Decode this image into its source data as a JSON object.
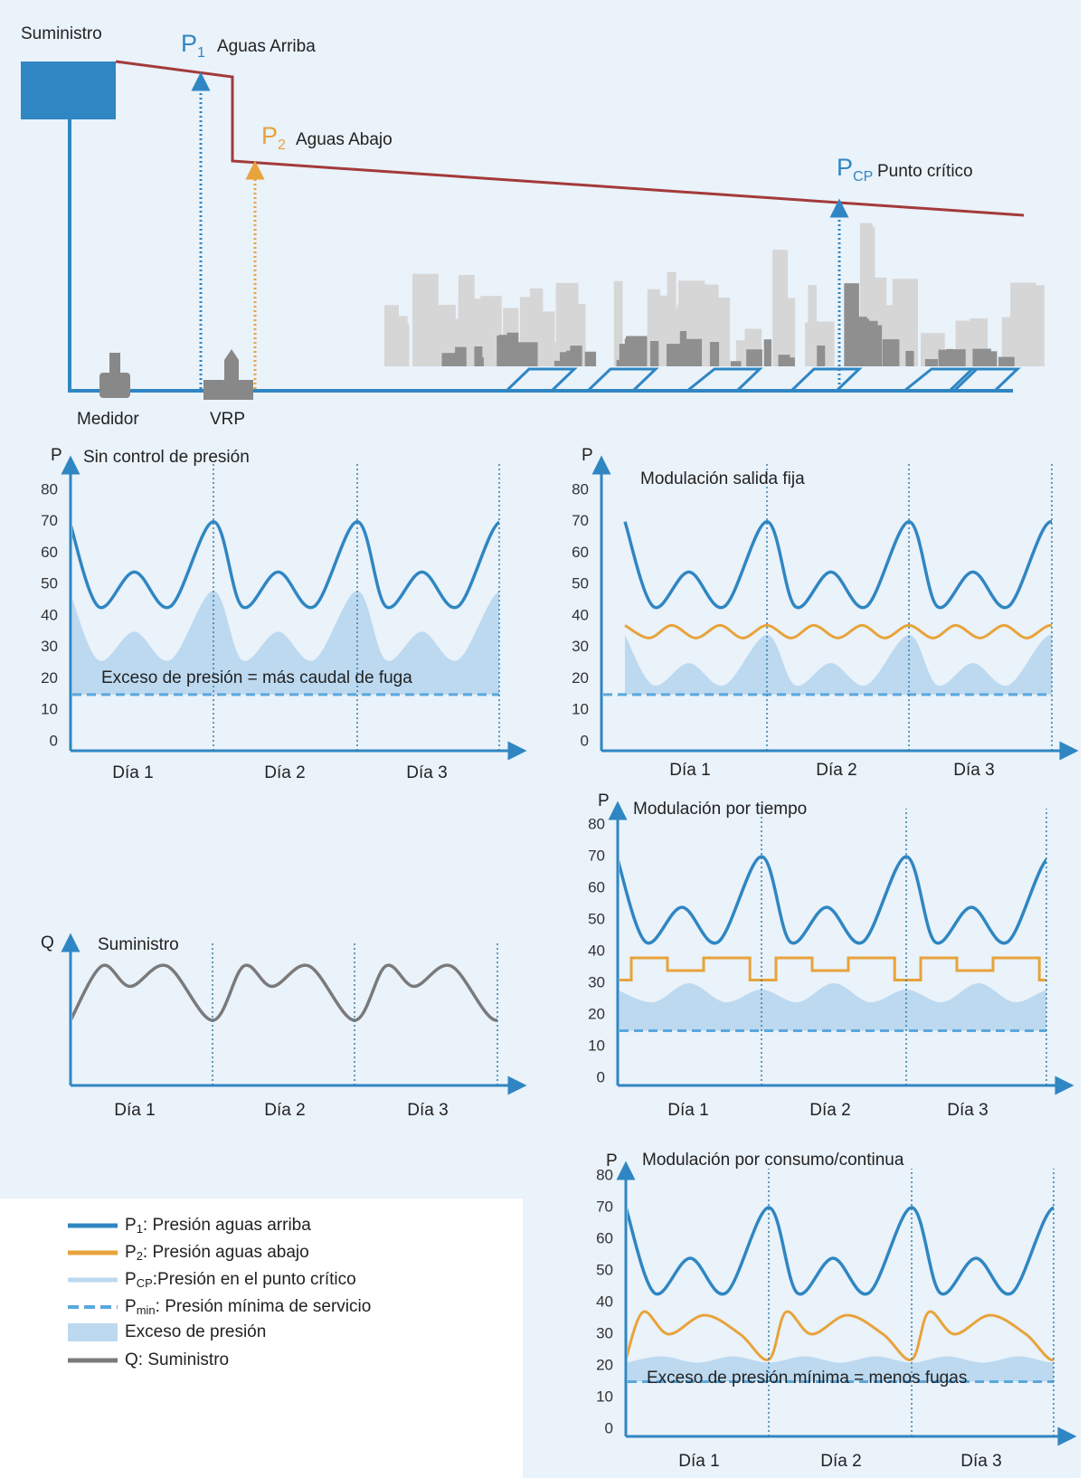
{
  "diagram": {
    "supply": "Suministro",
    "p1": {
      "symbol": "P",
      "sub": "1",
      "label": "Aguas Arriba"
    },
    "p2": {
      "symbol": "P",
      "sub": "2",
      "label": "Aguas Abajo"
    },
    "pcp": {
      "symbol": "P",
      "sub": "CP",
      "label": "Punto crítico"
    },
    "meter": "Medidor",
    "prv": "VRP"
  },
  "charts": [
    {
      "title": "Sin control de presión",
      "axis": "P",
      "yticks": [
        80,
        70,
        60,
        50,
        40,
        30,
        20,
        10,
        0
      ],
      "days": [
        "Día 1",
        "Día 2",
        "Día 3"
      ],
      "annotation": "Exceso de presión = más caudal de fuga"
    },
    {
      "title": "Modulación salida fija",
      "axis": "P",
      "yticks": [
        80,
        70,
        60,
        50,
        40,
        30,
        20,
        10,
        0
      ],
      "days": [
        "Día 1",
        "Día 2",
        "Día 3"
      ]
    },
    {
      "title": "Modulación por tiempo",
      "axis": "P",
      "yticks": [
        80,
        70,
        60,
        50,
        40,
        30,
        20,
        10,
        0
      ],
      "days": [
        "Día 1",
        "Día 2",
        "Día 3"
      ]
    },
    {
      "title": "Modulación por consumo/continua",
      "axis": "P",
      "yticks": [
        80,
        70,
        60,
        50,
        40,
        30,
        20,
        10,
        0
      ],
      "days": [
        "Día 1",
        "Día 2",
        "Día 3"
      ],
      "annotation": "Exceso de presión mínima = menos fugas"
    }
  ],
  "supply_chart": {
    "title": "Suministro",
    "axis": "Q",
    "days": [
      "Día 1",
      "Día 2",
      "Día 3"
    ]
  },
  "legend": [
    {
      "symbol": "P",
      "sub": "1",
      "text": ":  Presión aguas arriba"
    },
    {
      "symbol": "P",
      "sub": "2",
      "text": ": Presión aguas abajo"
    },
    {
      "symbol": "P",
      "sub": "CP",
      "text": ":Presión en el punto crítico"
    },
    {
      "symbol": "P",
      "sub": "min",
      "text": ": Presión mínima de servicio"
    },
    {
      "text": "Exceso de presión"
    },
    {
      "text": "Q: Suministro"
    }
  ]
}
